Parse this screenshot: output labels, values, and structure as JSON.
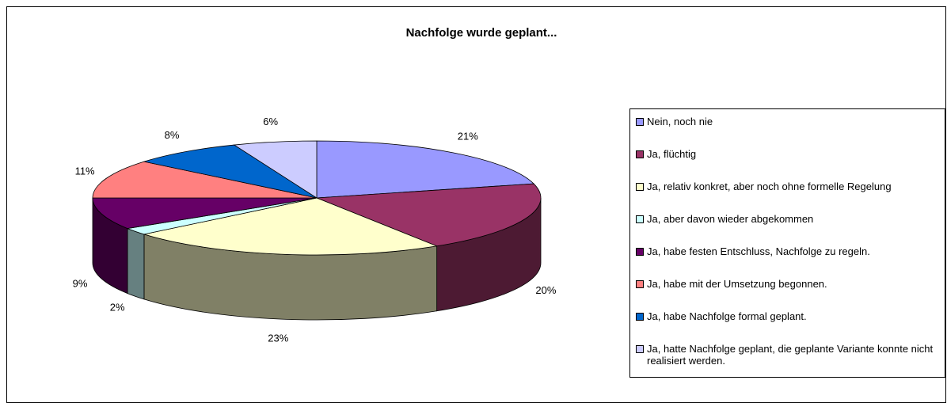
{
  "chart_data": {
    "type": "pie3d",
    "title": "Nachfolge wurde geplant...",
    "categories": [
      "Nein, noch nie",
      "Ja, flüchtig",
      "Ja, relativ konkret, aber noch ohne formelle Regelung",
      "Ja, aber davon wieder abgekommen",
      "Ja, habe festen Entschluss, Nachfolge zu regeln.",
      "Ja, habe mit der Umsetzung begonnen.",
      "Ja, habe Nachfolge formal geplant.",
      "Ja, hatte Nachfolge geplant, die geplante Variante konnte nicht realisiert werden."
    ],
    "values": [
      21,
      20,
      23,
      2,
      9,
      11,
      8,
      6
    ],
    "value_labels": [
      "21%",
      "20%",
      "23%",
      "2%",
      "9%",
      "11%",
      "8%",
      "6%"
    ],
    "colors": [
      "#9999ff",
      "#993366",
      "#ffffcc",
      "#ccffff",
      "#660066",
      "#ff8080",
      "#0066cc",
      "#ccccff"
    ],
    "legend": "right"
  }
}
